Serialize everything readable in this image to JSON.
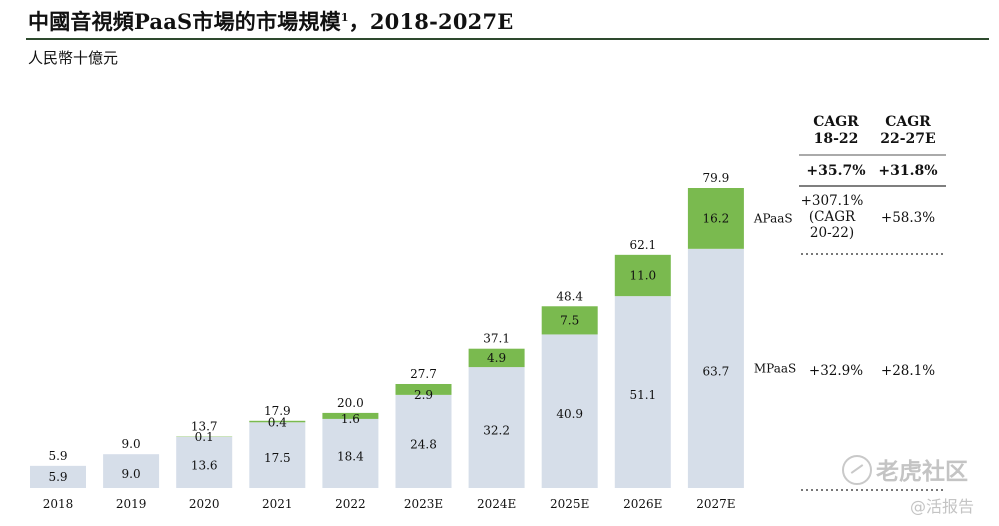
{
  "header": {
    "title": "中國音視頻PaaS市場的市場規模",
    "title_sup": "1",
    "title_suffix": "，2018-2027E",
    "unit": "人民幣十億元"
  },
  "chart_data": {
    "type": "bar",
    "stacked": true,
    "categories": [
      "2018",
      "2019",
      "2020",
      "2021",
      "2022",
      "2023E",
      "2024E",
      "2025E",
      "2026E",
      "2027E"
    ],
    "series": [
      {
        "name": "MPaaS",
        "values": [
          5.9,
          9.0,
          13.6,
          17.5,
          18.4,
          24.8,
          32.2,
          40.9,
          51.1,
          63.7
        ],
        "color": "#d6dee9"
      },
      {
        "name": "APaaS",
        "values": [
          null,
          null,
          0.1,
          0.4,
          1.6,
          2.9,
          4.9,
          7.5,
          11.0,
          16.2
        ],
        "color": "#7aba4f"
      }
    ],
    "totals": [
      5.9,
      9.0,
      13.7,
      17.9,
      20.0,
      27.7,
      37.1,
      48.4,
      62.1,
      79.9
    ],
    "cagr_table": {
      "headers": [
        "CAGR\n18-22",
        "CAGR\n22-27E"
      ],
      "total": [
        "+35.7%",
        "+31.8%"
      ],
      "rows": [
        {
          "label": "APaaS",
          "values": [
            "+307.1%\n(CAGR\n20-22)",
            "+58.3%"
          ]
        },
        {
          "label": "MPaaS",
          "values": [
            "+32.9%",
            "+28.1%"
          ]
        }
      ]
    }
  },
  "watermark": {
    "line1": "老虎社区",
    "line2": "@活报告"
  }
}
